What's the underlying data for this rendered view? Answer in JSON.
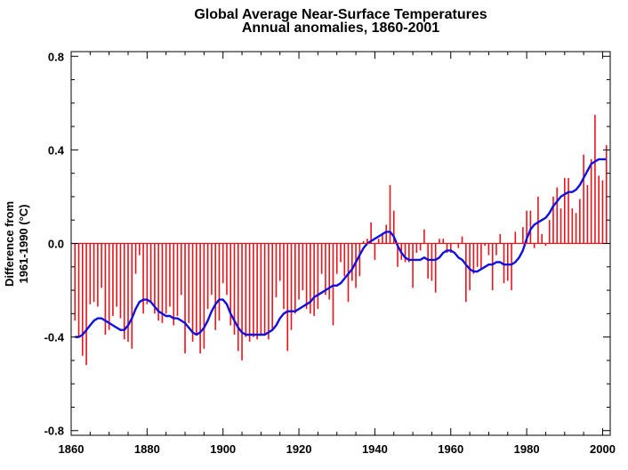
{
  "chart_data": {
    "type": "bar",
    "title": "Global Average Near-Surface Temperatures",
    "subtitle": "Annual anomalies, 1860-2001",
    "xlabel": "",
    "ylabel": [
      "Difference from",
      "1961-1990 (°C)"
    ],
    "xlim": [
      1860,
      2002
    ],
    "ylim": [
      -0.82,
      0.82
    ],
    "x_ticks": [
      "1860",
      "1880",
      "1900",
      "1920",
      "1940",
      "1960",
      "1980",
      "2000"
    ],
    "y_ticks": [
      "0.8",
      "0.4",
      "0.0",
      "-0.4",
      "-0.8"
    ],
    "bar_color": "#e8141c",
    "line_color": "#1010e0",
    "series": [
      {
        "kind": "bars",
        "x": [
          1861,
          1862,
          1863,
          1864,
          1865,
          1866,
          1867,
          1868,
          1869,
          1870,
          1871,
          1872,
          1873,
          1874,
          1875,
          1876,
          1877,
          1878,
          1879,
          1880,
          1881,
          1882,
          1883,
          1884,
          1885,
          1886,
          1887,
          1888,
          1889,
          1890,
          1891,
          1892,
          1893,
          1894,
          1895,
          1896,
          1897,
          1898,
          1899,
          1900,
          1901,
          1902,
          1903,
          1904,
          1905,
          1906,
          1907,
          1908,
          1909,
          1910,
          1911,
          1912,
          1913,
          1914,
          1915,
          1916,
          1917,
          1918,
          1919,
          1920,
          1921,
          1922,
          1923,
          1924,
          1925,
          1926,
          1927,
          1928,
          1929,
          1930,
          1931,
          1932,
          1933,
          1934,
          1935,
          1936,
          1937,
          1938,
          1939,
          1940,
          1941,
          1942,
          1943,
          1944,
          1945,
          1946,
          1947,
          1948,
          1949,
          1950,
          1951,
          1952,
          1953,
          1954,
          1955,
          1956,
          1957,
          1958,
          1959,
          1960,
          1961,
          1962,
          1963,
          1964,
          1965,
          1966,
          1967,
          1968,
          1969,
          1970,
          1971,
          1972,
          1973,
          1974,
          1975,
          1976,
          1977,
          1978,
          1979,
          1980,
          1981,
          1982,
          1983,
          1984,
          1985,
          1986,
          1987,
          1988,
          1989,
          1990,
          1991,
          1992,
          1993,
          1994,
          1995,
          1996,
          1997,
          1998,
          1999,
          2000,
          2001
        ],
        "values": [
          -0.33,
          -0.4,
          -0.48,
          -0.52,
          -0.26,
          -0.25,
          -0.27,
          -0.19,
          -0.39,
          -0.37,
          -0.31,
          -0.27,
          -0.32,
          -0.41,
          -0.42,
          -0.45,
          -0.13,
          -0.05,
          -0.3,
          -0.26,
          -0.25,
          -0.3,
          -0.33,
          -0.34,
          -0.3,
          -0.27,
          -0.35,
          -0.31,
          -0.22,
          -0.47,
          -0.34,
          -0.42,
          -0.39,
          -0.47,
          -0.45,
          -0.28,
          -0.22,
          -0.37,
          -0.33,
          -0.17,
          -0.22,
          -0.35,
          -0.39,
          -0.46,
          -0.5,
          -0.4,
          -0.42,
          -0.4,
          -0.41,
          -0.39,
          -0.39,
          -0.41,
          -0.37,
          -0.23,
          -0.16,
          -0.28,
          -0.46,
          -0.37,
          -0.3,
          -0.24,
          -0.2,
          -0.28,
          -0.3,
          -0.31,
          -0.28,
          -0.13,
          -0.22,
          -0.24,
          -0.35,
          -0.13,
          -0.08,
          -0.14,
          -0.25,
          -0.16,
          -0.19,
          -0.14,
          0.01,
          0.02,
          0.09,
          -0.07,
          0.02,
          0.04,
          0.08,
          0.25,
          0.14,
          -0.1,
          -0.07,
          -0.08,
          -0.08,
          -0.19,
          -0.04,
          -0.03,
          0.06,
          -0.15,
          -0.16,
          -0.21,
          0.02,
          0.02,
          -0.04,
          -0.04,
          0.0,
          -0.02,
          0.03,
          -0.25,
          -0.2,
          -0.13,
          -0.1,
          -0.11,
          -0.01,
          -0.05,
          -0.2,
          -0.05,
          0.04,
          -0.17,
          -0.16,
          -0.2,
          0.05,
          0.0,
          0.07,
          0.14,
          0.14,
          -0.02,
          0.2,
          0.04,
          -0.01,
          0.1,
          0.2,
          0.24,
          0.15,
          0.28,
          0.28,
          0.15,
          0.13,
          0.19,
          0.38,
          0.25,
          0.36,
          0.55,
          0.29,
          0.27,
          0.42
        ]
      },
      {
        "kind": "smoothed-line",
        "x": [
          1861,
          1862,
          1863,
          1864,
          1865,
          1866,
          1867,
          1868,
          1869,
          1870,
          1871,
          1872,
          1873,
          1874,
          1875,
          1876,
          1877,
          1878,
          1879,
          1880,
          1881,
          1882,
          1883,
          1884,
          1885,
          1886,
          1887,
          1888,
          1889,
          1890,
          1891,
          1892,
          1893,
          1894,
          1895,
          1896,
          1897,
          1898,
          1899,
          1900,
          1901,
          1902,
          1903,
          1904,
          1905,
          1906,
          1907,
          1908,
          1909,
          1910,
          1911,
          1912,
          1913,
          1914,
          1915,
          1916,
          1917,
          1918,
          1919,
          1920,
          1921,
          1922,
          1923,
          1924,
          1925,
          1926,
          1927,
          1928,
          1929,
          1930,
          1931,
          1932,
          1933,
          1934,
          1935,
          1936,
          1937,
          1938,
          1939,
          1940,
          1941,
          1942,
          1943,
          1944,
          1945,
          1946,
          1947,
          1948,
          1949,
          1950,
          1951,
          1952,
          1953,
          1954,
          1955,
          1956,
          1957,
          1958,
          1959,
          1960,
          1961,
          1962,
          1963,
          1964,
          1965,
          1966,
          1967,
          1968,
          1969,
          1970,
          1971,
          1972,
          1973,
          1974,
          1975,
          1976,
          1977,
          1978,
          1979,
          1980,
          1981,
          1982,
          1983,
          1984,
          1985,
          1986,
          1987,
          1988,
          1989,
          1990,
          1991,
          1992,
          1993,
          1994,
          1995,
          1996,
          1997,
          1998,
          1999,
          2000,
          2001
        ],
        "values": [
          -0.4,
          -0.4,
          -0.39,
          -0.37,
          -0.35,
          -0.33,
          -0.32,
          -0.32,
          -0.33,
          -0.34,
          -0.35,
          -0.36,
          -0.37,
          -0.37,
          -0.35,
          -0.32,
          -0.28,
          -0.25,
          -0.24,
          -0.24,
          -0.25,
          -0.27,
          -0.29,
          -0.3,
          -0.31,
          -0.31,
          -0.32,
          -0.32,
          -0.33,
          -0.34,
          -0.36,
          -0.38,
          -0.39,
          -0.38,
          -0.36,
          -0.33,
          -0.29,
          -0.26,
          -0.24,
          -0.24,
          -0.26,
          -0.3,
          -0.33,
          -0.36,
          -0.38,
          -0.39,
          -0.39,
          -0.39,
          -0.39,
          -0.39,
          -0.39,
          -0.38,
          -0.37,
          -0.35,
          -0.32,
          -0.3,
          -0.29,
          -0.29,
          -0.29,
          -0.28,
          -0.27,
          -0.26,
          -0.25,
          -0.23,
          -0.22,
          -0.21,
          -0.2,
          -0.19,
          -0.18,
          -0.18,
          -0.17,
          -0.15,
          -0.13,
          -0.11,
          -0.08,
          -0.05,
          -0.02,
          0.0,
          0.01,
          0.02,
          0.03,
          0.04,
          0.05,
          0.05,
          0.03,
          -0.01,
          -0.04,
          -0.06,
          -0.07,
          -0.07,
          -0.07,
          -0.07,
          -0.06,
          -0.07,
          -0.07,
          -0.07,
          -0.06,
          -0.04,
          -0.03,
          -0.03,
          -0.04,
          -0.06,
          -0.07,
          -0.09,
          -0.11,
          -0.12,
          -0.12,
          -0.11,
          -0.1,
          -0.09,
          -0.09,
          -0.08,
          -0.08,
          -0.09,
          -0.09,
          -0.09,
          -0.08,
          -0.06,
          -0.03,
          0.02,
          0.06,
          0.08,
          0.09,
          0.1,
          0.11,
          0.13,
          0.16,
          0.18,
          0.2,
          0.21,
          0.22,
          0.22,
          0.23,
          0.25,
          0.28,
          0.31,
          0.34,
          0.35,
          0.36,
          0.36,
          0.36
        ]
      }
    ]
  }
}
